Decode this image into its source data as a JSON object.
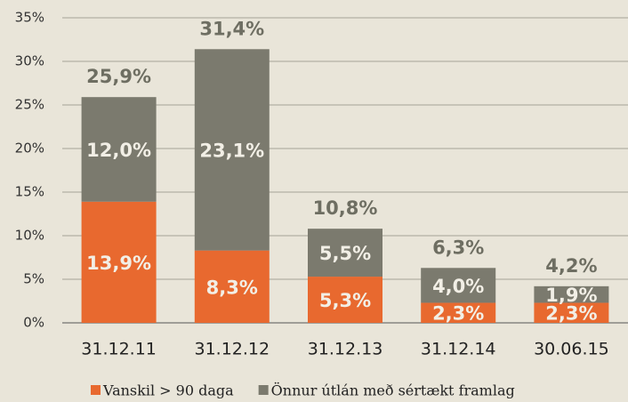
{
  "chart_data": {
    "type": "stacked_bar",
    "categories": [
      "31.12.11",
      "31.12.12",
      "31.12.13",
      "31.12.14",
      "30.06.15"
    ],
    "series": [
      {
        "name": "Vanskil > 90 daga",
        "color": "#e8692f",
        "values": [
          13.9,
          8.3,
          5.3,
          2.3,
          2.3
        ],
        "value_labels": [
          "13,9%",
          "8,3%",
          "5,3%",
          "2,3%",
          "2,3%"
        ]
      },
      {
        "name": "Önnur útlán með sértækt framlag",
        "color": "#7b7a6e",
        "values": [
          12.0,
          23.1,
          5.5,
          4.0,
          1.9
        ],
        "value_labels": [
          "12,0%",
          "23,1%",
          "5,5%",
          "4,0%",
          "1,9%"
        ]
      }
    ],
    "totals": {
      "values": [
        25.9,
        31.4,
        10.8,
        6.3,
        4.2
      ],
      "value_labels": [
        "25,9%",
        "31,4%",
        "10,8%",
        "6,3%",
        "4,2%"
      ]
    },
    "ylim": [
      0,
      35
    ],
    "yticks": [
      {
        "value": 0,
        "label": "0%"
      },
      {
        "value": 5,
        "label": "5%"
      },
      {
        "value": 10,
        "label": "10%"
      },
      {
        "value": 15,
        "label": "15%"
      },
      {
        "value": 20,
        "label": "20%"
      },
      {
        "value": 25,
        "label": "25%"
      },
      {
        "value": 30,
        "label": "30%"
      },
      {
        "value": 35,
        "label": "35%"
      }
    ],
    "grid": true,
    "legend": "bottom"
  }
}
